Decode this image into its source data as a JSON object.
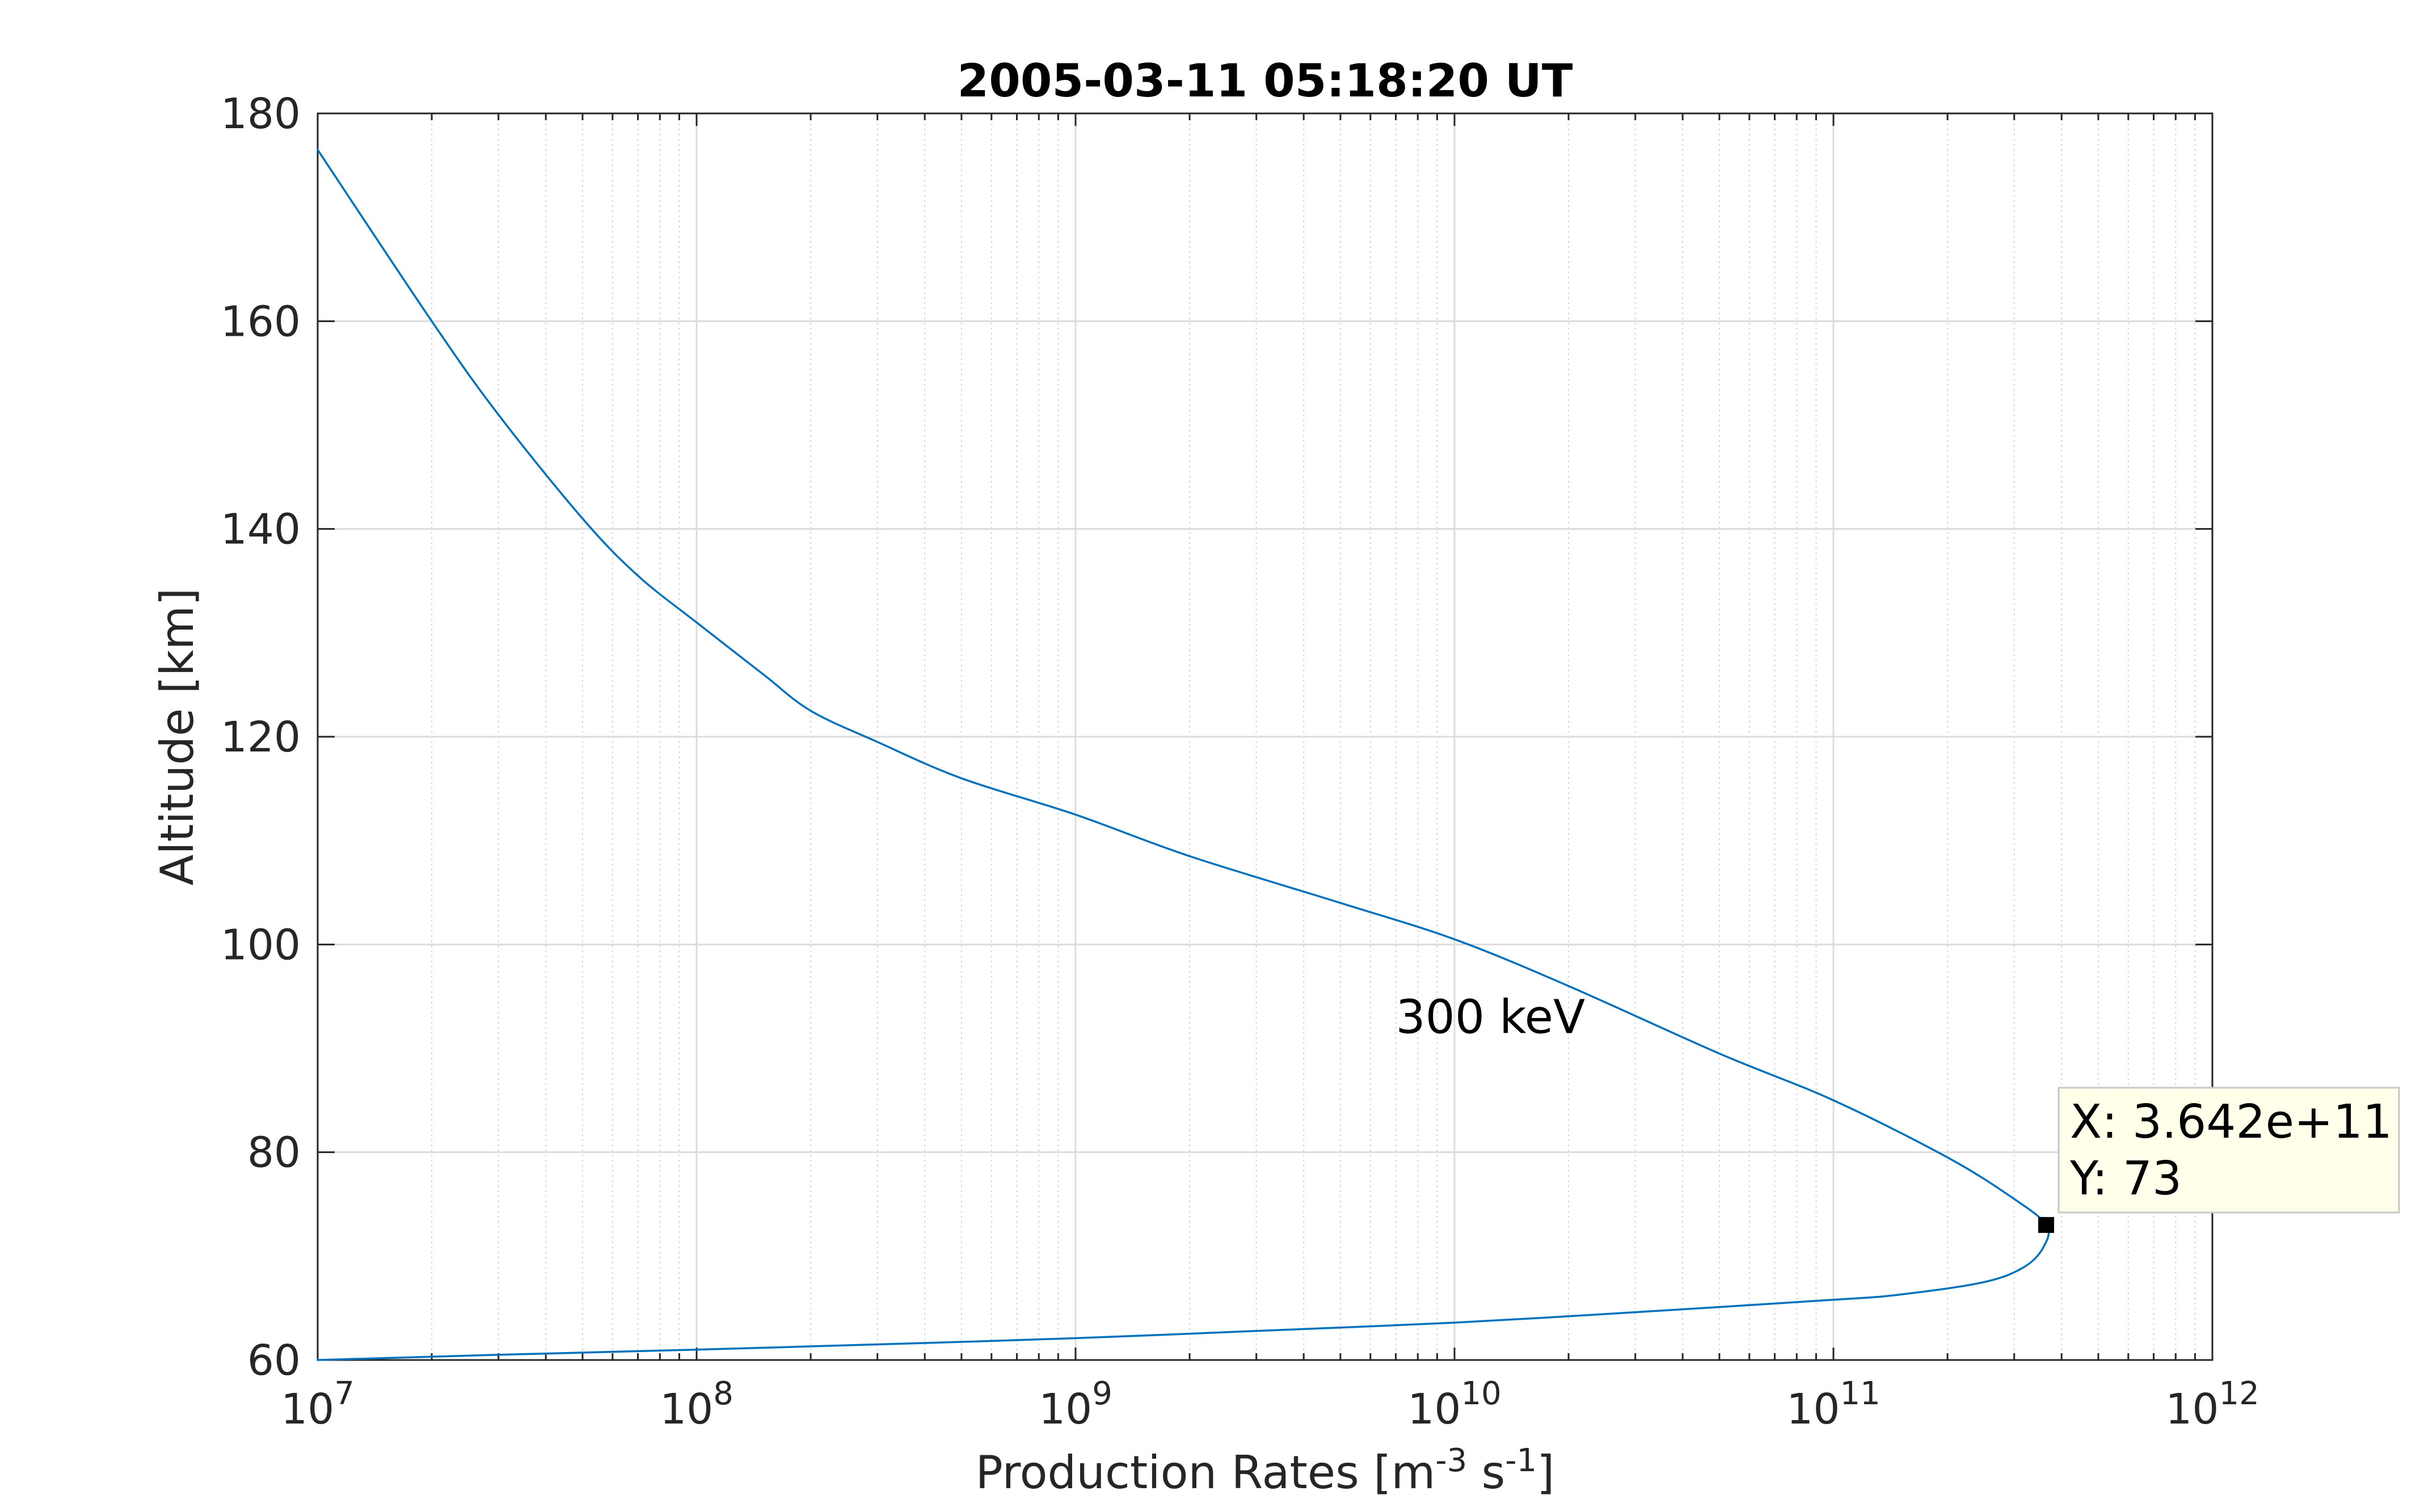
{
  "chart_data": {
    "type": "line",
    "title": "2005-03-11 05:18:20 UT",
    "xlabel": "Production Rates [m-3 s-1]",
    "xlabel_parts": [
      "Production Rates [m",
      "-3",
      " s",
      "-1",
      "]"
    ],
    "ylabel": "Altitude [km]",
    "xscale": "log",
    "xlim": [
      10000000,
      1000000000000
    ],
    "ylim": [
      60,
      180
    ],
    "grid": true,
    "x_tick_labels": [
      {
        "base": "10",
        "exp": "7"
      },
      {
        "base": "10",
        "exp": "8"
      },
      {
        "base": "10",
        "exp": "9"
      },
      {
        "base": "10",
        "exp": "10"
      },
      {
        "base": "10",
        "exp": "11"
      },
      {
        "base": "10",
        "exp": "12"
      }
    ],
    "y_ticks": [
      60,
      80,
      100,
      120,
      140,
      160,
      180
    ],
    "series": [
      {
        "color": "#0072BD",
        "points": [
          [
            10000000,
            176.5
          ],
          [
            20000000,
            160
          ],
          [
            30000000,
            151
          ],
          [
            50000000,
            141
          ],
          [
            70000000,
            135.5
          ],
          [
            100000000,
            131
          ],
          [
            150000000,
            126
          ],
          [
            200000000,
            122.5
          ],
          [
            300000000,
            119.5
          ],
          [
            500000000,
            116
          ],
          [
            1000000000,
            112.5
          ],
          [
            2000000000,
            108.5
          ],
          [
            5000000000,
            104
          ],
          [
            10000000000,
            100.5
          ],
          [
            20000000000,
            96
          ],
          [
            50000000000,
            89.5
          ],
          [
            100000000000,
            85
          ],
          [
            200000000000,
            79.5
          ],
          [
            300000000000,
            75.5
          ],
          [
            364200000000,
            73
          ],
          [
            360000000000,
            71
          ],
          [
            320000000000,
            69
          ],
          [
            250000000000,
            67.5
          ],
          [
            150000000000,
            66.3
          ],
          [
            100000000000,
            65.8
          ],
          [
            30000000000,
            64.6
          ],
          [
            10000000000,
            63.6
          ],
          [
            3000000000,
            62.8
          ],
          [
            1000000000,
            62.1
          ],
          [
            300000000,
            61.5
          ],
          [
            100000000,
            61
          ],
          [
            30000000,
            60.5
          ],
          [
            10000000,
            60
          ]
        ]
      }
    ],
    "annotations": [
      {
        "text": "300 keV",
        "x": 7000000000,
        "y": 93
      }
    ],
    "datatip": {
      "x": 364200000000,
      "y": 73,
      "line1": "X: 3.642e+11",
      "line2": "Y: 73",
      "background": "#FFFFEA",
      "border": "#C8C8C8"
    }
  }
}
